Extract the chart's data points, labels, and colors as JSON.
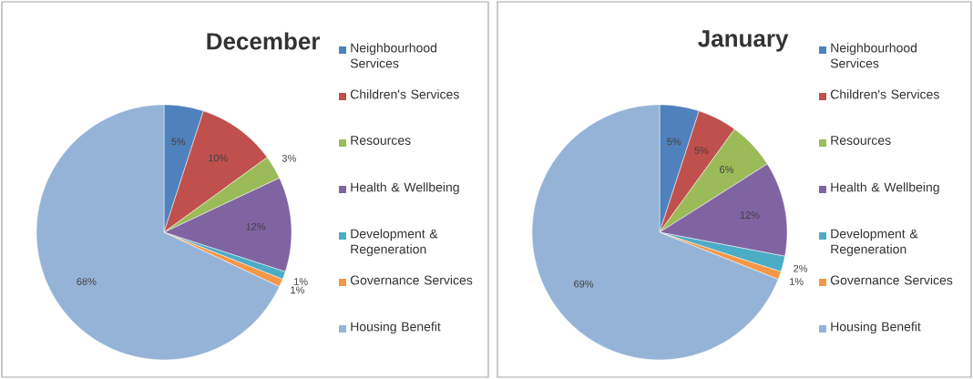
{
  "chart_data": [
    {
      "type": "pie",
      "title": "December",
      "categories": [
        "Neighbourhood Services",
        "Children's Services",
        "Resources",
        "Health & Wellbeing",
        "Development & Regeneration",
        "Governance Services",
        "Housing Benefit"
      ],
      "values": [
        5,
        10,
        3,
        12,
        1,
        1,
        68
      ],
      "value_labels": [
        "5%",
        "10%",
        "3%",
        "12%",
        "1%",
        "1%",
        "68%"
      ],
      "colors": [
        "#4f81bd",
        "#c0504d",
        "#9bbb59",
        "#8064a2",
        "#4bacc6",
        "#f79646",
        "#95b3d7"
      ],
      "legend": "right"
    },
    {
      "type": "pie",
      "title": "January",
      "categories": [
        "Neighbourhood Services",
        "Children's Services",
        "Resources",
        "Health & Wellbeing",
        "Development & Regeneration",
        "Governance Services",
        "Housing Benefit"
      ],
      "values": [
        5,
        5,
        6,
        12,
        2,
        1,
        69
      ],
      "value_labels": [
        "5%",
        "5%",
        "6%",
        "12%",
        "2%",
        "1%",
        "69%"
      ],
      "colors": [
        "#4f81bd",
        "#c0504d",
        "#9bbb59",
        "#8064a2",
        "#4bacc6",
        "#f79646",
        "#95b3d7"
      ],
      "legend": "right"
    }
  ]
}
